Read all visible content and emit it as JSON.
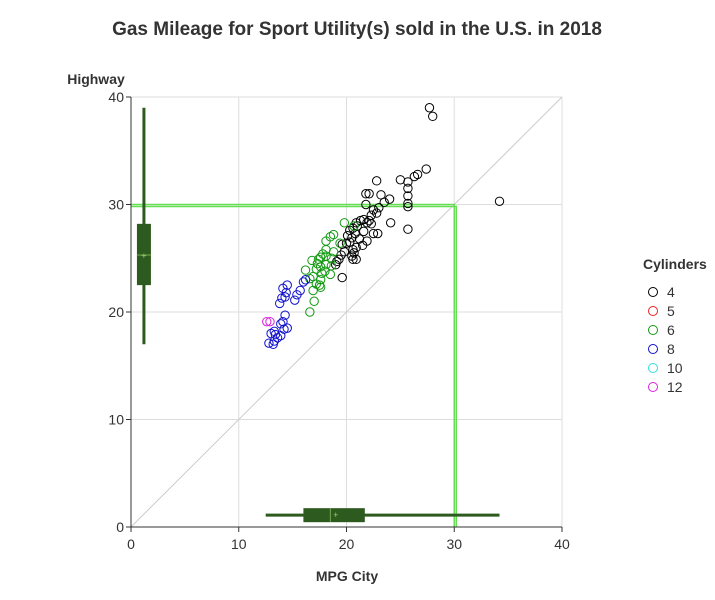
{
  "chart_data": {
    "type": "scatter",
    "title": "Gas Mileage for Sport Utility(s) sold in the U.S. in 2018",
    "xlabel": "MPG City",
    "ylabel": "Highway",
    "xlim": [
      0,
      40
    ],
    "ylim": [
      0,
      40
    ],
    "x_ticks": [
      "0",
      "10",
      "20",
      "30",
      "40"
    ],
    "y_ticks": [
      "0",
      "10",
      "20",
      "30",
      "40"
    ],
    "grid": true,
    "diagonal_reference": true,
    "reference_lines": {
      "x": 30,
      "y": 30,
      "color": "#66dd55"
    },
    "legend": {
      "title": "Cylinders",
      "placement": "right",
      "items": [
        {
          "label": "4",
          "color": "#000000"
        },
        {
          "label": "5",
          "color": "#ee2222"
        },
        {
          "label": "6",
          "color": "#119911"
        },
        {
          "label": "8",
          "color": "#1111cc"
        },
        {
          "label": "10",
          "color": "#33dddd"
        },
        {
          "label": "12",
          "color": "#dd22dd"
        }
      ]
    },
    "box_city": {
      "min": 12.5,
      "q1": 16,
      "median": 18.5,
      "mean": 19,
      "q3": 21.7,
      "max": 34.2,
      "color": "#2d5a1e"
    },
    "box_highway": {
      "min": 17,
      "q1": 22.5,
      "median": 25.3,
      "mean": 25.2,
      "q3": 28.2,
      "max": 39,
      "color": "#2d5a1e"
    },
    "series": [
      {
        "name": "4",
        "color": "#000000",
        "points": [
          [
            27.7,
            39
          ],
          [
            28,
            38.2
          ],
          [
            34.2,
            30.3
          ],
          [
            27.4,
            33.3
          ],
          [
            26.6,
            32.8
          ],
          [
            26.3,
            32.6
          ],
          [
            25,
            32.3
          ],
          [
            25.7,
            32.1
          ],
          [
            22.8,
            32.2
          ],
          [
            25.7,
            31.5
          ],
          [
            25.7,
            30.8
          ],
          [
            23.2,
            30.9
          ],
          [
            22.1,
            31.0
          ],
          [
            21.8,
            31.0
          ],
          [
            24,
            30.5
          ],
          [
            23.5,
            30.2
          ],
          [
            25.7,
            30.1
          ],
          [
            25.7,
            29.8
          ],
          [
            23,
            29.7
          ],
          [
            22.5,
            29.5
          ],
          [
            21.8,
            30.0
          ],
          [
            22.8,
            29.2
          ],
          [
            22.3,
            29.0
          ],
          [
            21.6,
            28.6
          ],
          [
            22.1,
            28.5
          ],
          [
            21.3,
            28.5
          ],
          [
            20.9,
            28.3
          ],
          [
            21.9,
            28.3
          ],
          [
            22.3,
            28.2
          ],
          [
            24.1,
            28.3
          ],
          [
            21,
            28.0
          ],
          [
            20.6,
            27.8
          ],
          [
            20.3,
            27.6
          ],
          [
            21.6,
            27.5
          ],
          [
            20.8,
            27.3
          ],
          [
            22.9,
            27.3
          ],
          [
            22.5,
            27.3
          ],
          [
            25.7,
            27.7
          ],
          [
            20.1,
            27.1
          ],
          [
            20.5,
            26.9
          ],
          [
            21.2,
            26.8
          ],
          [
            21.9,
            26.6
          ],
          [
            20.3,
            26.5
          ],
          [
            20,
            26.4
          ],
          [
            21.5,
            26.2
          ],
          [
            20.9,
            26.0
          ],
          [
            19.6,
            26.3
          ],
          [
            20.6,
            25.8
          ],
          [
            19.8,
            25.6
          ],
          [
            20.7,
            25.5
          ],
          [
            19.5,
            25.3
          ],
          [
            20.5,
            25.2
          ],
          [
            19.3,
            24.9
          ],
          [
            20.6,
            24.9
          ],
          [
            20.9,
            24.9
          ],
          [
            19.1,
            24.7
          ],
          [
            19.0,
            24.4
          ],
          [
            19.6,
            23.2
          ]
        ]
      },
      {
        "name": "6",
        "color": "#119911",
        "points": [
          [
            19.8,
            28.3
          ],
          [
            20.7,
            28.0
          ],
          [
            18.8,
            27.2
          ],
          [
            18.5,
            27.0
          ],
          [
            18.1,
            26.6
          ],
          [
            19.4,
            26.4
          ],
          [
            18.1,
            25.8
          ],
          [
            18.8,
            25.6
          ],
          [
            17.8,
            25.4
          ],
          [
            18.1,
            25.2
          ],
          [
            17.6,
            25.1
          ],
          [
            18.6,
            25.0
          ],
          [
            17.4,
            24.9
          ],
          [
            16.8,
            24.8
          ],
          [
            17.3,
            24.5
          ],
          [
            18.1,
            24.4
          ],
          [
            18.6,
            24.3
          ],
          [
            17.6,
            24.2
          ],
          [
            17.2,
            24.0
          ],
          [
            16.2,
            23.9
          ],
          [
            18.0,
            23.8
          ],
          [
            17.7,
            23.6
          ],
          [
            16.9,
            23.3
          ],
          [
            18.5,
            23.5
          ],
          [
            16.6,
            23.1
          ],
          [
            17.6,
            23.0
          ],
          [
            17.2,
            22.6
          ],
          [
            17.5,
            22.5
          ],
          [
            17.6,
            22.3
          ],
          [
            16.9,
            22.0
          ],
          [
            17.0,
            21.0
          ],
          [
            16.6,
            20.0
          ]
        ]
      },
      {
        "name": "8",
        "color": "#1111cc",
        "points": [
          [
            16.2,
            23.0
          ],
          [
            16.0,
            22.8
          ],
          [
            14.5,
            22.5
          ],
          [
            14.1,
            22.2
          ],
          [
            15.7,
            22.0
          ],
          [
            14.4,
            21.8
          ],
          [
            15.4,
            21.6
          ],
          [
            14.3,
            21.4
          ],
          [
            14.0,
            21.3
          ],
          [
            15.2,
            21.1
          ],
          [
            13.8,
            20.8
          ],
          [
            14.3,
            19.7
          ],
          [
            14.1,
            19.1
          ],
          [
            13.9,
            18.9
          ],
          [
            14.5,
            18.5
          ],
          [
            14.2,
            18.4
          ],
          [
            13.3,
            18.2
          ],
          [
            13.0,
            18.0
          ],
          [
            13.4,
            17.9
          ],
          [
            13.6,
            17.6
          ],
          [
            13.9,
            17.8
          ],
          [
            13.3,
            17.3
          ],
          [
            12.8,
            17.1
          ],
          [
            13.2,
            17.0
          ]
        ]
      },
      {
        "name": "12",
        "color": "#dd22dd",
        "points": [
          [
            12.6,
            19.1
          ],
          [
            12.9,
            19.1
          ]
        ]
      }
    ]
  }
}
